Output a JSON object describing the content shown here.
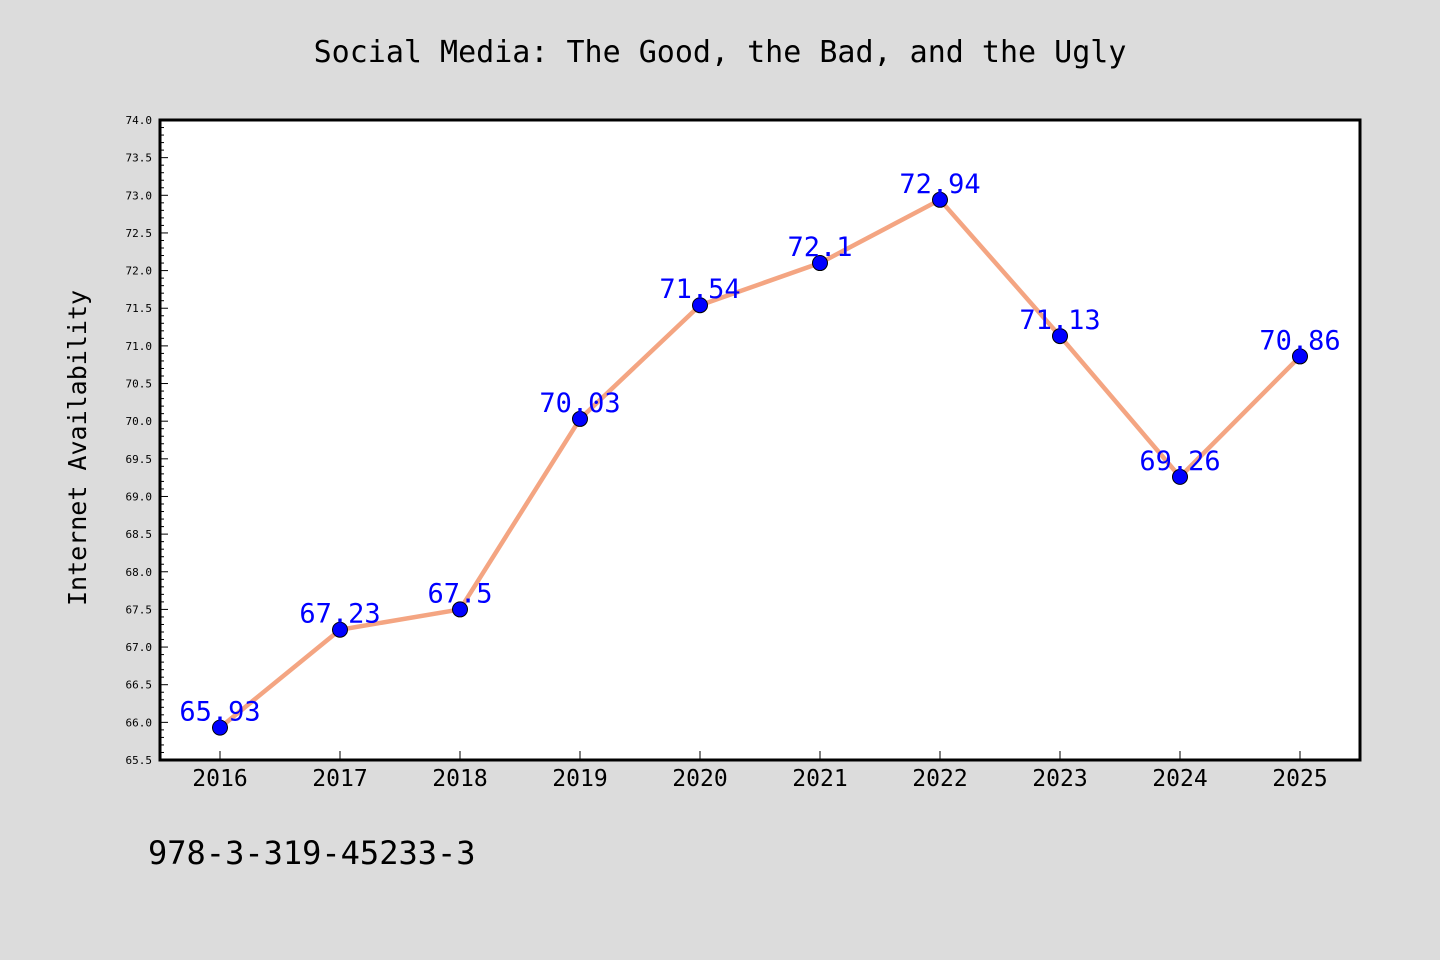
{
  "chart_data": {
    "type": "line",
    "title": "Social Media: The Good, the Bad, and the Ugly",
    "xlabel": "",
    "ylabel": "Internet Availability",
    "categories": [
      "2016",
      "2017",
      "2018",
      "2019",
      "2020",
      "2021",
      "2022",
      "2023",
      "2024",
      "2025"
    ],
    "series": [
      {
        "values": [
          65.93,
          67.23,
          67.5,
          70.03,
          71.54,
          72.1,
          72.94,
          71.13,
          69.26,
          70.86
        ],
        "data_labels": [
          "65.93",
          "67.23",
          "67.5",
          "70.03",
          "71.54",
          "72.1",
          "72.94",
          "71.13",
          "69.26",
          "70.86"
        ],
        "line_color": "#f4a582",
        "marker_color": "#0000ff",
        "label_color": "#0000ff"
      }
    ],
    "ylim": [
      65.5,
      74.0
    ],
    "y_ticks": [
      "65.5",
      "66.0",
      "66.5",
      "67.0",
      "67.5",
      "68.0",
      "68.5",
      "69.0",
      "69.5",
      "70.0",
      "70.5",
      "71.0",
      "71.5",
      "72.0",
      "72.5",
      "73.0",
      "73.5",
      "74.0"
    ],
    "grid": false,
    "legend": "none"
  },
  "footnote": "978-3-319-45233-3",
  "colors": {
    "background": "#dcdcdc",
    "plot_background": "#ffffff",
    "axis": "#000000"
  }
}
